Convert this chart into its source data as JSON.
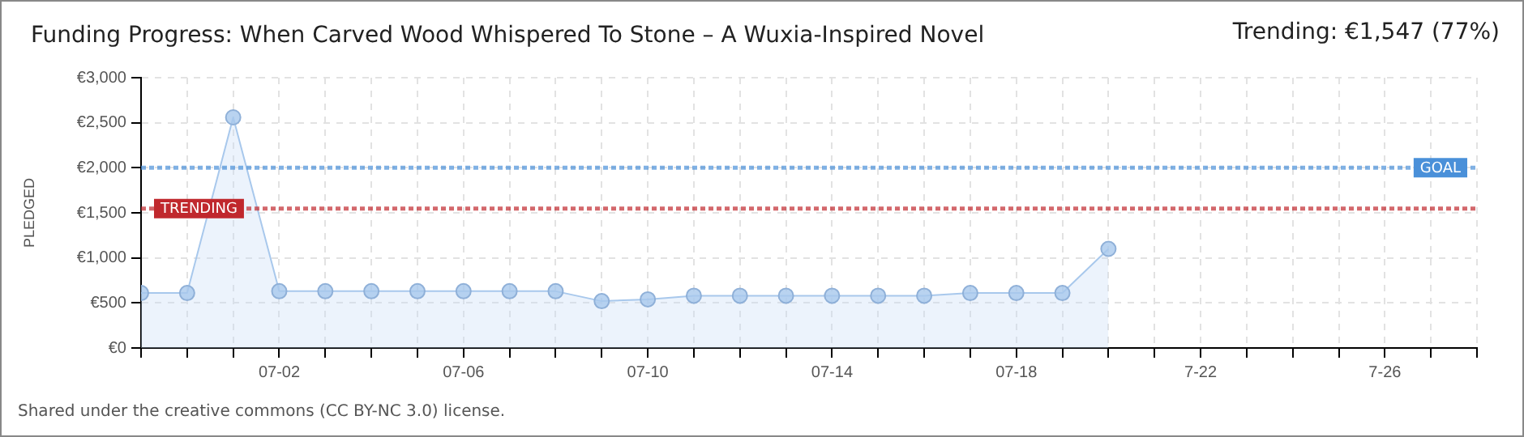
{
  "chart_data": {
    "type": "area",
    "title": "Funding Progress: When Carved Wood Whispered To Stone – A Wuxia-Inspired Novel",
    "ylabel": "PLEDGED",
    "x": [
      "--06-29",
      "--06-30",
      "--07-01",
      "--07-02",
      "--07-03",
      "--07-04",
      "--07-05",
      "--07-06",
      "--07-07",
      "--07-08",
      "--07-09",
      "--07-10",
      "--07-11",
      "--07-12",
      "--07-13",
      "--07-14",
      "--07-15",
      "--07-16",
      "--07-17",
      "--07-18",
      "--07-19",
      "--07-20"
    ],
    "series": [
      {
        "color": "#a8c8ec",
        "values": [
          610,
          610,
          2560,
          630,
          630,
          630,
          630,
          630,
          630,
          630,
          520,
          540,
          580,
          580,
          580,
          580,
          580,
          580,
          610,
          610,
          610,
          1100
        ]
      }
    ],
    "xlim": [
      "--06-29",
      "--07-28"
    ],
    "xticks": [
      {
        "value": "--06-29",
        "label": null
      },
      {
        "value": "--06-30",
        "label": null
      },
      {
        "value": "--07-01",
        "label": null
      },
      {
        "value": "--07-02",
        "label": "07-02"
      },
      {
        "value": "--07-03",
        "label": null
      },
      {
        "value": "--07-04",
        "label": null
      },
      {
        "value": "--07-05",
        "label": null
      },
      {
        "value": "--07-06",
        "label": "07-06"
      },
      {
        "value": "--07-07",
        "label": null
      },
      {
        "value": "--07-08",
        "label": null
      },
      {
        "value": "--07-09",
        "label": null
      },
      {
        "value": "--07-10",
        "label": "07-10"
      },
      {
        "value": "--07-11",
        "label": null
      },
      {
        "value": "--07-12",
        "label": null
      },
      {
        "value": "--07-13",
        "label": null
      },
      {
        "value": "--07-14",
        "label": "07-14"
      },
      {
        "value": "--07-15",
        "label": null
      },
      {
        "value": "--07-16",
        "label": null
      },
      {
        "value": "--07-17",
        "label": null
      },
      {
        "value": "--07-18",
        "label": "07-18"
      },
      {
        "value": "--07-19",
        "label": null
      },
      {
        "value": "--07-20",
        "label": null
      },
      {
        "value": "--07-21",
        "label": null
      },
      {
        "value": "--07-22",
        "label": "7-22"
      },
      {
        "value": "--07-23",
        "label": null
      },
      {
        "value": "--07-24",
        "label": null
      },
      {
        "value": "--07-25",
        "label": null
      },
      {
        "value": "--07-26",
        "label": "7-26"
      },
      {
        "value": "--07-27",
        "label": null
      },
      {
        "value": "--07-28",
        "label": null
      }
    ],
    "ylim": [
      0,
      3000
    ],
    "yticks": [
      {
        "value": 0,
        "label": "€0"
      },
      {
        "value": 500,
        "label": "€500"
      },
      {
        "value": 1000,
        "label": "€1,000"
      },
      {
        "value": 1500,
        "label": "€1,500"
      },
      {
        "value": 2000,
        "label": "€2,000"
      },
      {
        "value": 2500,
        "label": "€2,500"
      },
      {
        "value": 3000,
        "label": "€3,000"
      }
    ],
    "ref_lines": [
      {
        "axis": "y",
        "value": 2000,
        "label": "GOAL",
        "color": "#4a90d9",
        "line_style": "dotted"
      },
      {
        "axis": "y",
        "value": 1547,
        "label": "TRENDING",
        "color": "#c0282d",
        "line_style": "dotted"
      }
    ],
    "annotations": [
      "Trending:  €1,547 (77%)",
      "Shared under the creative commons (CC BY-NC 3.0) license."
    ],
    "grid": true,
    "marker": "circle",
    "legend": false
  }
}
